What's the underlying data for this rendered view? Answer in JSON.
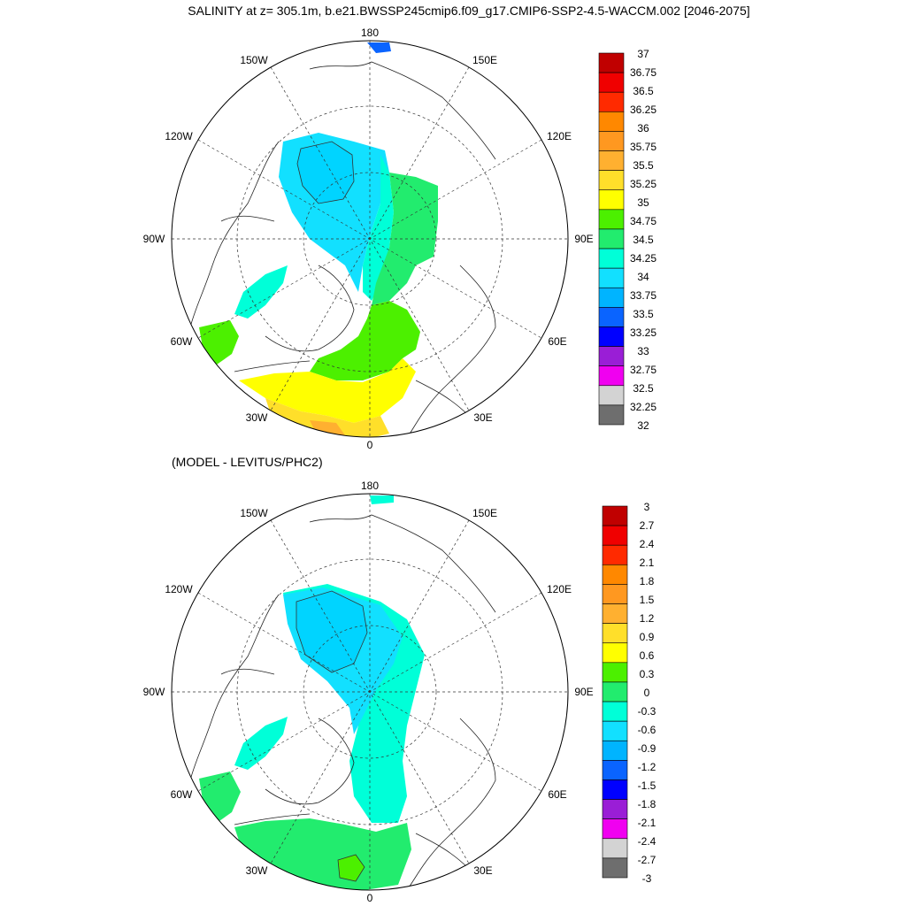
{
  "title": "SALINITY at z= 305.1m, b.e21.BWSSP245cmip6.f09_g17.CMIP6-SSP2-4.5-WACCM.002 [2046-2075]",
  "subtitle": "(MODEL - LEVITUS/PHC2)",
  "map_labels": [
    "180",
    "150E",
    "120E",
    "90E",
    "60E",
    "30E",
    "0",
    "30W",
    "60W",
    "90W",
    "120W",
    "150W"
  ],
  "colors": [
    "#6e6e6e",
    "#d3d3d3",
    "#f000f0",
    "#9a1ed6",
    "#0000ff",
    "#0a64ff",
    "#00b4ff",
    "#12e0ff",
    "#00ffd8",
    "#22ec6e",
    "#4cf000",
    "#ffff00",
    "#ffdf2a",
    "#ffb030",
    "#ff9820",
    "#ff8800",
    "#ff2a00",
    "#f00000",
    "#c00000"
  ],
  "legend_top": [
    "37",
    "36.75",
    "36.5",
    "36.25",
    "36",
    "35.75",
    "35.5",
    "35.25",
    "35",
    "34.75",
    "34.5",
    "34.25",
    "34",
    "33.75",
    "33.5",
    "33.25",
    "33",
    "32.75",
    "32.5",
    "32.25",
    "32"
  ],
  "legend_bottom": [
    "3",
    "2.7",
    "2.4",
    "2.1",
    "1.8",
    "1.5",
    "1.2",
    "0.9",
    "0.6",
    "0.3",
    "0",
    "-0.3",
    "-0.6",
    "-0.9",
    "-1.2",
    "-1.5",
    "-1.8",
    "-2.1",
    "-2.4",
    "-2.7",
    "-3"
  ]
}
